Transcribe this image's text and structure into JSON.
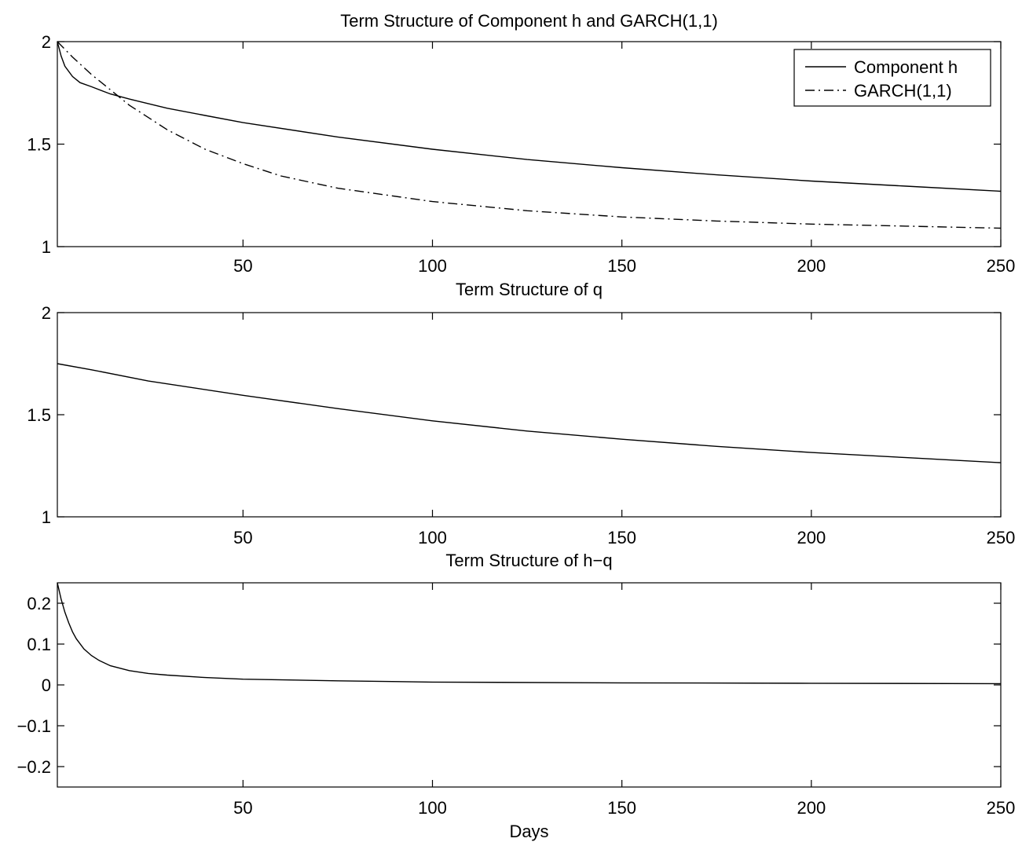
{
  "chart_data": [
    {
      "type": "line",
      "title": "Term Structure of Component h and GARCH(1,1)",
      "xlabel": "",
      "ylabel": "",
      "xlim": [
        1,
        250
      ],
      "ylim": [
        1,
        2
      ],
      "xticks": [
        50,
        100,
        150,
        200,
        250
      ],
      "yticks": [
        1,
        1.5,
        2
      ],
      "ytick_labels": [
        "1",
        "1.5",
        "2"
      ],
      "grid": false,
      "legend": "top-right",
      "series": [
        {
          "name": "Component h",
          "style": "solid",
          "x": [
            1,
            2,
            3,
            5,
            7,
            10,
            15,
            20,
            30,
            40,
            50,
            75,
            100,
            125,
            150,
            175,
            200,
            225,
            250
          ],
          "y": [
            2.0,
            1.93,
            1.88,
            1.83,
            1.8,
            1.78,
            1.745,
            1.72,
            1.675,
            1.64,
            1.605,
            1.535,
            1.475,
            1.425,
            1.385,
            1.35,
            1.32,
            1.295,
            1.27
          ]
        },
        {
          "name": "GARCH(1,1)",
          "style": "dashdot",
          "x": [
            1,
            5,
            10,
            15,
            20,
            30,
            40,
            50,
            60,
            75,
            100,
            125,
            150,
            175,
            200,
            225,
            250
          ],
          "y": [
            2.0,
            1.925,
            1.84,
            1.765,
            1.69,
            1.57,
            1.475,
            1.405,
            1.345,
            1.285,
            1.22,
            1.175,
            1.145,
            1.125,
            1.11,
            1.1,
            1.09
          ]
        }
      ]
    },
    {
      "type": "line",
      "title": "Term Structure of q",
      "xlabel": "",
      "ylabel": "",
      "xlim": [
        1,
        250
      ],
      "ylim": [
        1,
        2
      ],
      "xticks": [
        50,
        100,
        150,
        200,
        250
      ],
      "yticks": [
        1,
        1.5,
        2
      ],
      "ytick_labels": [
        "1",
        "1.5",
        "2"
      ],
      "grid": false,
      "series": [
        {
          "style": "solid",
          "x": [
            1,
            10,
            25,
            50,
            75,
            100,
            125,
            150,
            175,
            200,
            225,
            250
          ],
          "y": [
            1.75,
            1.72,
            1.665,
            1.595,
            1.53,
            1.47,
            1.42,
            1.38,
            1.345,
            1.315,
            1.29,
            1.265
          ]
        }
      ]
    },
    {
      "type": "line",
      "title": "Term Structure of h−q",
      "xlabel": "Days",
      "ylabel": "",
      "xlim": [
        1,
        250
      ],
      "ylim": [
        -0.25,
        0.25
      ],
      "xticks": [
        50,
        100,
        150,
        200,
        250
      ],
      "yticks": [
        -0.2,
        -0.1,
        0,
        0.1,
        0.2
      ],
      "ytick_labels": [
        "−0.2",
        "−0.1",
        "0",
        "0.1",
        "0.2"
      ],
      "grid": false,
      "series": [
        {
          "style": "solid",
          "x": [
            1,
            2,
            3,
            4,
            5,
            6,
            8,
            10,
            12,
            15,
            20,
            25,
            30,
            40,
            50,
            75,
            100,
            150,
            200,
            250
          ],
          "y": [
            0.25,
            0.21,
            0.178,
            0.152,
            0.13,
            0.113,
            0.088,
            0.072,
            0.06,
            0.047,
            0.035,
            0.028,
            0.024,
            0.018,
            0.014,
            0.01,
            0.007,
            0.005,
            0.004,
            0.003
          ]
        }
      ]
    }
  ]
}
